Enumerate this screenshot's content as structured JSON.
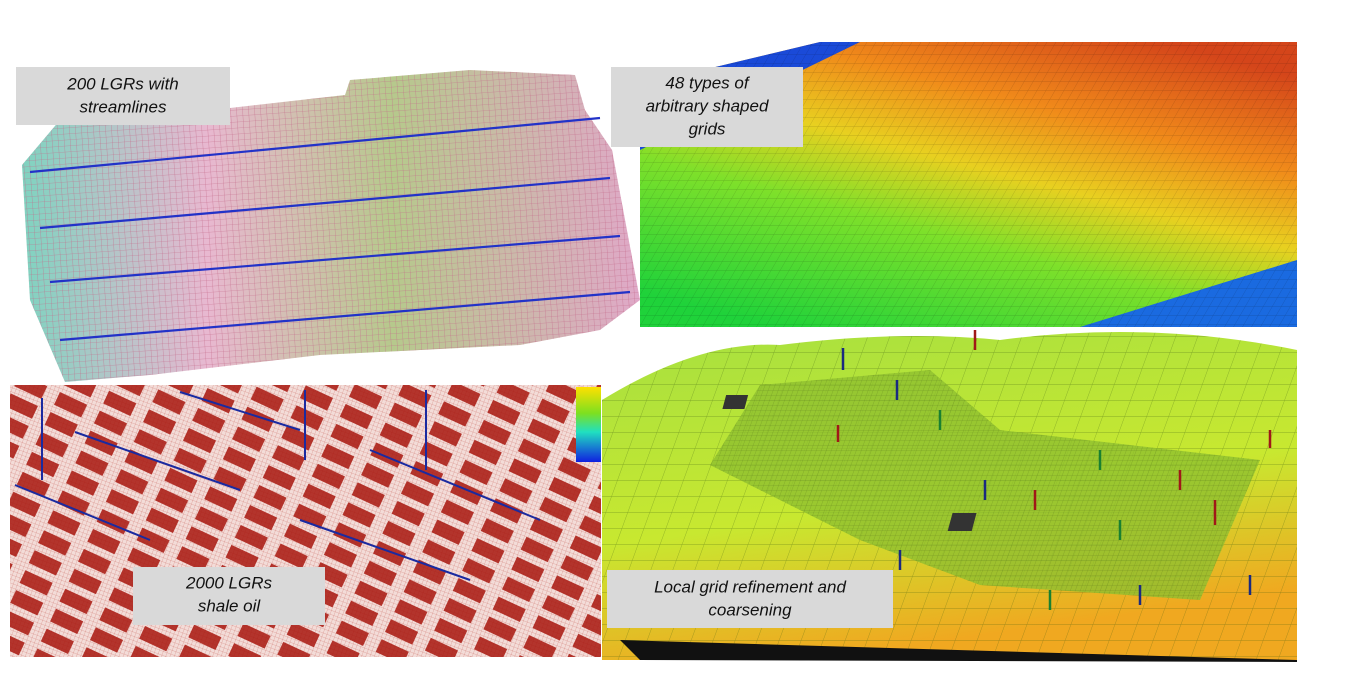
{
  "panels": [
    {
      "caption": [
        "200 LGRs with",
        "streamlines"
      ]
    },
    {
      "caption": [
        "48 types of",
        "arbitrary shaped",
        "grids"
      ]
    },
    {
      "caption": [
        "2000 LGRs",
        "shale oil"
      ]
    },
    {
      "caption": [
        "Local grid refinement and",
        "coarsening"
      ]
    }
  ]
}
